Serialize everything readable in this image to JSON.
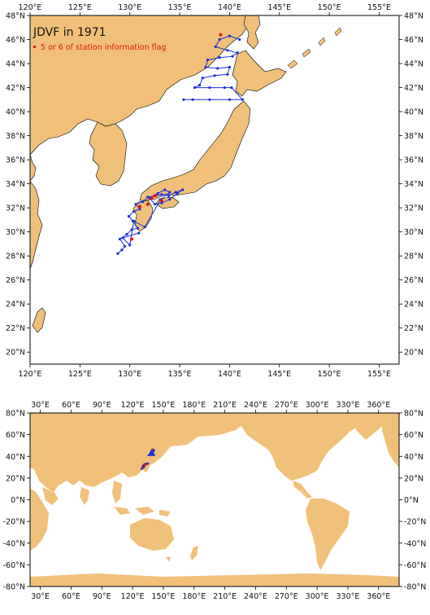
{
  "top_map": {
    "title": "JDVF in 1971",
    "legend_label": "5 or 6 of station information flag",
    "lon_labels": [
      "120°E",
      "125°E",
      "130°E",
      "135°E",
      "140°E",
      "145°E",
      "150°E",
      "155°E"
    ],
    "lon_values": [
      120,
      125,
      130,
      135,
      140,
      145,
      150,
      155
    ],
    "lat_labels": [
      "20°N",
      "22°N",
      "24°N",
      "26°N",
      "28°N",
      "30°N",
      "32°N",
      "34°N",
      "36°N",
      "38°N",
      "40°N",
      "42°N",
      "44°N",
      "46°N",
      "48°N"
    ],
    "lat_values": [
      20,
      22,
      24,
      26,
      28,
      30,
      32,
      34,
      36,
      38,
      40,
      42,
      44,
      46,
      48
    ],
    "extent": {
      "lon_min": 120,
      "lon_max": 157,
      "lat_min": 19,
      "lat_max": 48
    }
  },
  "world_map": {
    "lon_labels": [
      "30°E",
      "60°E",
      "90°E",
      "120°E",
      "150°E",
      "180°E",
      "210°E",
      "240°E",
      "270°E",
      "300°E",
      "330°E",
      "360°E"
    ],
    "lon_values": [
      30,
      60,
      90,
      120,
      150,
      180,
      210,
      240,
      270,
      300,
      330,
      360
    ],
    "lat_labels": [
      "80°N",
      "60°N",
      "40°N",
      "20°N",
      "0°N",
      "-20°N",
      "-40°N",
      "-60°N",
      "-80°N"
    ],
    "lat_values": [
      80,
      60,
      40,
      20,
      0,
      -20,
      -40,
      -60,
      -80
    ],
    "extent": {
      "lon_min": 20,
      "lon_max": 380,
      "lat_min": -80,
      "lat_max": 80
    }
  },
  "colors": {
    "land": "#f0c07a",
    "track": "#1a2fd6",
    "flag": "#e01515",
    "frame": "#000000"
  },
  "chart_data": {
    "type": "scatter",
    "series": [
      {
        "values": [
          [
            141.0,
            46.0
          ],
          [
            140.0,
            46.3
          ],
          [
            139.0,
            46.0
          ],
          [
            138.6,
            45.4
          ],
          [
            139.8,
            45.1
          ],
          [
            140.8,
            44.9
          ],
          [
            140.3,
            44.6
          ],
          [
            139.0,
            44.5
          ],
          [
            137.8,
            44.3
          ],
          [
            137.6,
            43.7
          ],
          [
            138.8,
            43.6
          ],
          [
            140.0,
            43.7
          ],
          [
            139.8,
            43.1
          ],
          [
            138.5,
            43.0
          ],
          [
            137.3,
            42.8
          ],
          [
            137.0,
            42.2
          ],
          [
            136.5,
            42.0
          ],
          [
            138.0,
            42.0
          ],
          [
            139.5,
            42.0
          ],
          [
            140.2,
            42.0
          ],
          [
            141.3,
            41.0
          ],
          [
            140.0,
            41.0
          ],
          [
            138.0,
            41.0
          ],
          [
            136.3,
            41.0
          ],
          [
            135.4,
            41.0
          ],
          [
            128.8,
            28.2
          ],
          [
            129.2,
            28.5
          ],
          [
            129.5,
            28.8
          ],
          [
            129.0,
            29.4
          ],
          [
            129.7,
            29.8
          ],
          [
            130.2,
            30.2
          ],
          [
            130.8,
            30.3
          ],
          [
            130.3,
            30.9
          ],
          [
            129.9,
            31.3
          ],
          [
            130.4,
            31.7
          ],
          [
            131.0,
            31.9
          ],
          [
            130.6,
            32.3
          ],
          [
            131.3,
            32.5
          ],
          [
            131.8,
            32.9
          ],
          [
            132.6,
            33.0
          ],
          [
            133.2,
            33.1
          ],
          [
            133.9,
            33.0
          ],
          [
            134.6,
            33.3
          ],
          [
            135.3,
            33.5
          ],
          [
            134.8,
            33.2
          ],
          [
            134.0,
            32.7
          ],
          [
            133.2,
            32.4
          ],
          [
            132.5,
            32.3
          ],
          [
            132.0,
            32.8
          ],
          [
            132.8,
            33.2
          ],
          [
            133.5,
            33.5
          ],
          [
            134.0,
            33.3
          ],
          [
            133.1,
            32.7
          ],
          [
            131.5,
            30.4
          ],
          [
            130.4,
            30.9
          ],
          [
            130.0,
            28.9
          ],
          [
            129.3,
            29.5
          ],
          [
            130.9,
            29.9
          ]
        ]
      },
      {
        "values": [
          [
            139.1,
            46.4
          ],
          [
            131.8,
            32.3
          ],
          [
            132.2,
            32.8
          ],
          [
            133.2,
            32.6
          ],
          [
            132.5,
            33.0
          ],
          [
            130.2,
            29.4
          ],
          [
            131.0,
            32.1
          ]
        ]
      }
    ]
  }
}
